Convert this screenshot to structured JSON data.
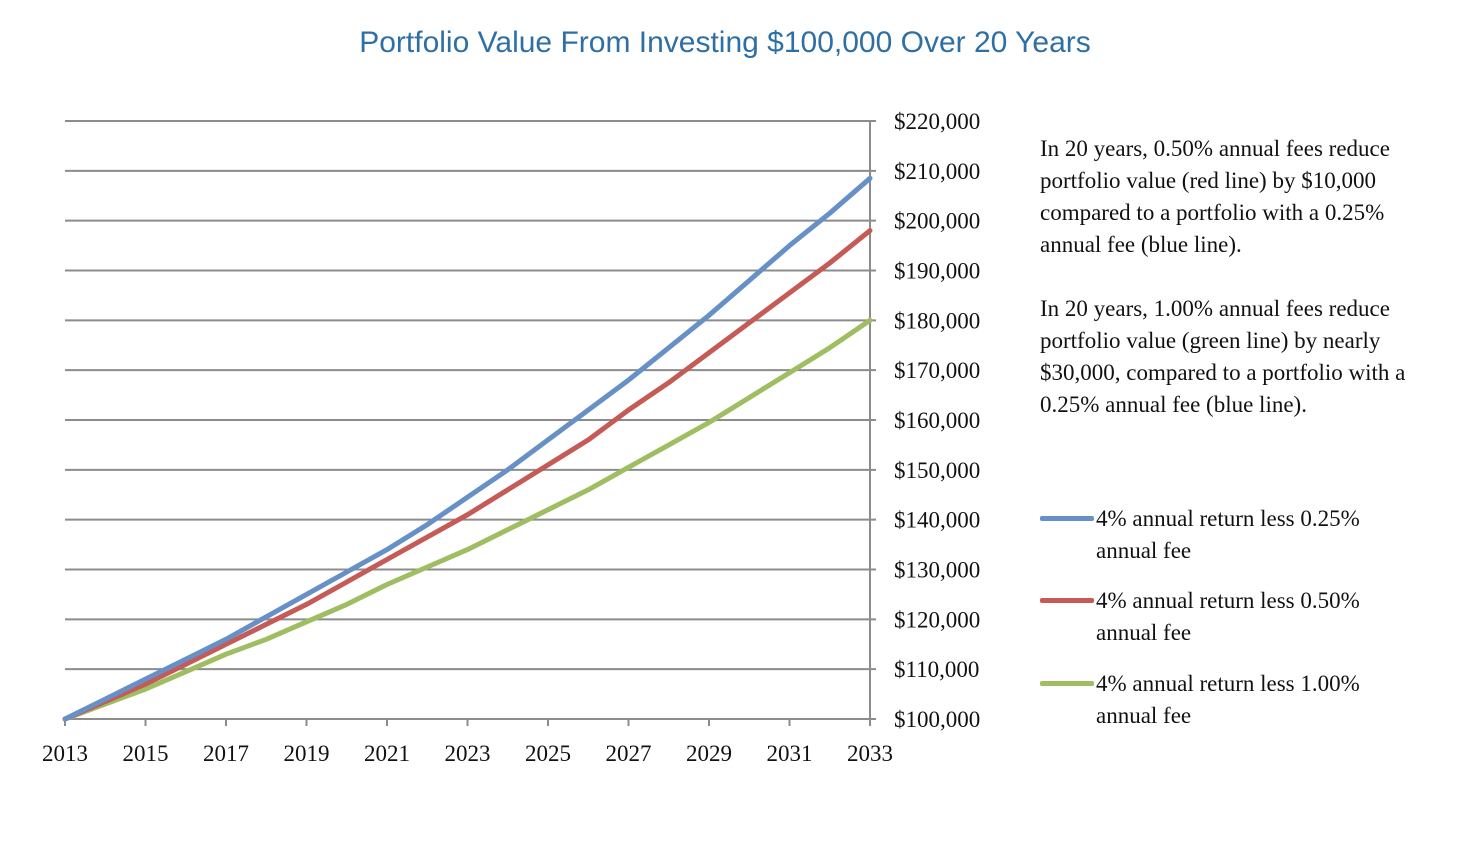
{
  "chart_data": {
    "type": "line",
    "title": "Portfolio Value From Investing $100,000 Over 20 Years",
    "x": [
      2013,
      2014,
      2015,
      2016,
      2017,
      2018,
      2019,
      2020,
      2021,
      2022,
      2023,
      2024,
      2025,
      2026,
      2027,
      2028,
      2029,
      2030,
      2031,
      2032,
      2033
    ],
    "x_tick_labels": [
      "2013",
      "2015",
      "2017",
      "2019",
      "2021",
      "2023",
      "2025",
      "2027",
      "2029",
      "2031",
      "2033"
    ],
    "y_tick_labels": [
      "$220,000",
      "$210,000",
      "$200,000",
      "$190,000",
      "$180,000",
      "$170,000",
      "$160,000",
      "$150,000",
      "$140,000",
      "$130,000",
      "$120,000",
      "$110,000",
      "$100,000"
    ],
    "xlim": [
      2013,
      2033
    ],
    "ylim": [
      100000,
      220000
    ],
    "y_axis_side": "right",
    "grid": true,
    "legend_position": "right",
    "series": [
      {
        "name": "4% annual return less 0.25% annual fee",
        "color": "#6790c6",
        "values": [
          100000,
          104000,
          108000,
          112000,
          116000,
          120500,
          125000,
          129500,
          134000,
          139000,
          144500,
          150000,
          156000,
          162000,
          168000,
          174500,
          181000,
          188000,
          195000,
          201500,
          208500
        ]
      },
      {
        "name": "4% annual return less 0.50% annual fee",
        "color": "#c45b56",
        "values": [
          100000,
          103500,
          107000,
          111000,
          115000,
          119000,
          123000,
          127500,
          132000,
          136500,
          141000,
          146000,
          151000,
          156000,
          162000,
          167500,
          173500,
          179500,
          185500,
          191500,
          198000
        ]
      },
      {
        "name": "4% annual return less 1.00% annual fee",
        "color": "#9fbe62",
        "values": [
          100000,
          103000,
          106000,
          109500,
          113000,
          116000,
          119500,
          123000,
          127000,
          130500,
          134000,
          138000,
          142000,
          146000,
          150500,
          155000,
          159500,
          164500,
          169500,
          174500,
          180000
        ]
      }
    ]
  },
  "annotations": {
    "note_1": "In 20 years, 0.50% annual fees reduce portfolio value (red line) by $10,000 compared to a portfolio with a 0.25% annual fee (blue line).",
    "note_2": "In 20 years, 1.00% annual fees reduce portfolio value (green line) by nearly $30,000, compared to a portfolio with a 0.25% annual fee (blue line)."
  },
  "colors": {
    "title": "#2e6fa5",
    "grid": "#8c8c8c",
    "axis": "#8c8c8c"
  }
}
